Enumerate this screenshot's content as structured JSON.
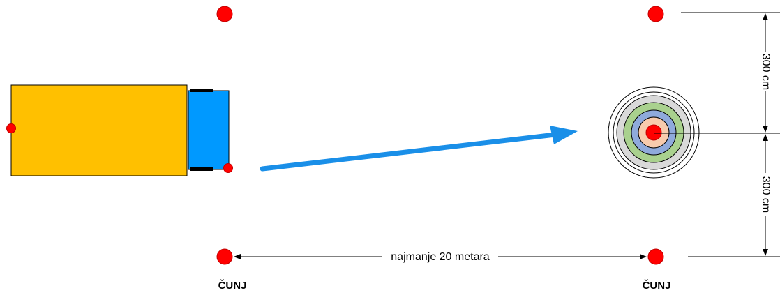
{
  "labels": {
    "distance": "najmanje 20 metara",
    "height_top": "300 cm",
    "height_bottom": "300 cm",
    "cone_left": "ČUNJ",
    "cone_right": "ČUNJ"
  },
  "colors": {
    "cone": "#ff0000",
    "vehicle_body": "#ffc000",
    "vehicle_cab": "#0099ff",
    "arrow": "#1a8fe8",
    "target_rings": [
      "#d9d9d9",
      "#a9d18e",
      "#8faadc",
      "#f8cbad"
    ]
  }
}
